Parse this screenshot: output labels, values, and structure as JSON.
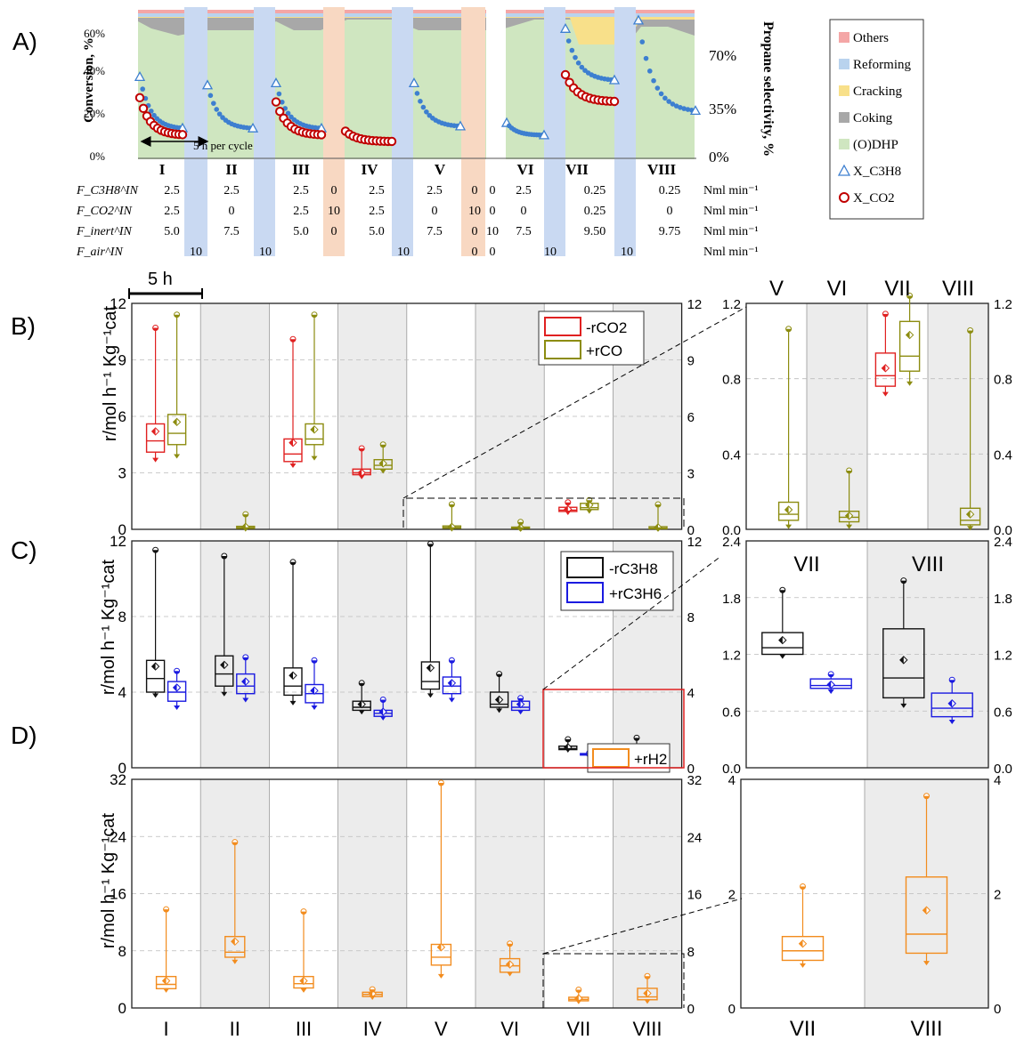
{
  "panel_labels": {
    "a": "A)",
    "b": "B)",
    "c": "C)",
    "d": "D)"
  },
  "scale_bar_label": "5 h",
  "cycle_note": "5 h per cycle",
  "colors": {
    "others": "#f4a6a6",
    "reforming": "#b9d3ee",
    "cracking": "#f8e08a",
    "coking": "#a8a8a8",
    "odhp": "#cfe6c0",
    "xc3h8": "#3d7fd0",
    "xco2": "#c00000",
    "rco2": "#e02020",
    "rco": "#8c8c10",
    "rc3h8": "#111111",
    "rc3h6": "#1a1ae0",
    "rh2": "#f28c1e",
    "air_band": "#c9d9f2",
    "co2_band": "#f8d8c2",
    "shade": "#ececec"
  },
  "chart_data": [
    {
      "type": "area",
      "panel": "A",
      "ylabel_left": "Conversion, %",
      "ylabel_right": "Propane selectivity, %",
      "yticks_left": [
        "0%",
        "20%",
        "40%",
        "60%"
      ],
      "yticks_right": [
        "0%",
        "35%",
        "70%"
      ],
      "cycles": [
        "I",
        "II",
        "III",
        "IV",
        "V",
        "VI",
        "VII",
        "VIII"
      ],
      "legend": [
        "Others",
        "Reforming",
        "Cracking",
        "Coking",
        "(O)DHP",
        "X_C3H8",
        "X_CO2"
      ],
      "feed_table": {
        "row_labels": [
          "F_C3H8^IN",
          "F_CO2^IN",
          "F_inert^IN",
          "F_air^IN"
        ],
        "units": [
          "Nml min⁻¹",
          "Nml min⁻¹",
          "Nml min⁻¹",
          "Nml min⁻¹"
        ],
        "columns": [
          {
            "C3H8": "2.5",
            "CO2": "2.5",
            "inert": "5.0",
            "air": ""
          },
          {
            "C3H8": "",
            "CO2": "",
            "inert": "",
            "air": "10"
          },
          {
            "C3H8": "2.5",
            "CO2": "0",
            "inert": "7.5",
            "air": ""
          },
          {
            "C3H8": "",
            "CO2": "",
            "inert": "",
            "air": "10"
          },
          {
            "C3H8": "2.5",
            "CO2": "2.5",
            "inert": "5.0",
            "air": ""
          },
          {
            "C3H8": "0",
            "CO2": "10",
            "inert": "0",
            "air": ""
          },
          {
            "C3H8": "2.5",
            "CO2": "2.5",
            "inert": "5.0",
            "air": ""
          },
          {
            "C3H8": "",
            "CO2": "",
            "inert": "",
            "air": "10"
          },
          {
            "C3H8": "2.5",
            "CO2": "0",
            "inert": "7.5",
            "air": ""
          },
          {
            "C3H8": "0",
            "CO2": "10",
            "inert": "0",
            "air": "0"
          },
          {
            "C3H8": "0",
            "CO2": "0",
            "inert": "10",
            "air": "0"
          },
          {
            "C3H8": "2.5",
            "CO2": "0",
            "inert": "7.5",
            "air": ""
          },
          {
            "C3H8": "",
            "CO2": "",
            "inert": "",
            "air": "10"
          },
          {
            "C3H8": "0.25",
            "CO2": "0.25",
            "inert": "9.50",
            "air": ""
          },
          {
            "C3H8": "",
            "CO2": "",
            "inert": "",
            "air": "10"
          },
          {
            "C3H8": "0.25",
            "CO2": "0",
            "inert": "9.75",
            "air": ""
          }
        ]
      },
      "conversion_c3h8": [
        {
          "cycle": "I",
          "start": 39,
          "end": 14
        },
        {
          "cycle": "II",
          "start": 35,
          "end": 14
        },
        {
          "cycle": "III",
          "start": 36,
          "end": 14
        },
        {
          "cycle": "V",
          "start": 36,
          "end": 15
        },
        {
          "cycle": "VI",
          "start": 17,
          "end": 11
        },
        {
          "cycle": "VII",
          "start": 62,
          "end": 37
        },
        {
          "cycle": "VIII",
          "start": 66,
          "end": 22
        }
      ],
      "conversion_co2": [
        {
          "cycle": "I",
          "start": 29,
          "end": 11
        },
        {
          "cycle": "III",
          "start": 27,
          "end": 11
        },
        {
          "cycle": "IV",
          "start": 13,
          "end": 8
        },
        {
          "cycle": "VII",
          "start": 40,
          "end": 27
        }
      ]
    },
    {
      "type": "box",
      "panel": "B",
      "ylabel": "r/mol h⁻¹ Kg⁻¹cat",
      "ylim": [
        0,
        12
      ],
      "yticks": [
        "0",
        "3",
        "6",
        "9",
        "12"
      ],
      "series": [
        {
          "name": "-rCO2",
          "boxes": [
            {
              "cycle": "I",
              "min": 3.7,
              "q1": 4.1,
              "median": 4.7,
              "q3": 5.6,
              "mean": 5.2,
              "max": 10.7
            },
            {
              "cycle": "III",
              "min": 3.4,
              "q1": 3.6,
              "median": 4.0,
              "q3": 4.8,
              "mean": 4.6,
              "max": 10.1
            },
            {
              "cycle": "IV",
              "min": 2.8,
              "q1": 2.9,
              "median": 3.0,
              "q3": 3.2,
              "mean": 3.0,
              "max": 4.3
            },
            {
              "cycle": "VII",
              "min": 0.9,
              "q1": 0.95,
              "median": 1.02,
              "q3": 1.17,
              "mean": 1.07,
              "max": 1.43
            }
          ]
        },
        {
          "name": "+rCO",
          "boxes": [
            {
              "cycle": "I",
              "min": 3.9,
              "q1": 4.5,
              "median": 5.1,
              "q3": 6.1,
              "mean": 5.7,
              "max": 11.4
            },
            {
              "cycle": "II",
              "min": 0.02,
              "q1": 0.05,
              "median": 0.09,
              "q3": 0.16,
              "mean": 0.13,
              "max": 0.8
            },
            {
              "cycle": "III",
              "min": 3.8,
              "q1": 4.5,
              "median": 4.8,
              "q3": 5.6,
              "mean": 5.3,
              "max": 11.4
            },
            {
              "cycle": "IV",
              "min": 3.1,
              "q1": 3.2,
              "median": 3.4,
              "q3": 3.7,
              "mean": 3.5,
              "max": 4.5
            },
            {
              "cycle": "V",
              "min": 0.02,
              "q1": 0.06,
              "median": 0.1,
              "q3": 0.18,
              "mean": 0.13,
              "max": 1.33
            },
            {
              "cycle": "VI",
              "min": 0.02,
              "q1": 0.05,
              "median": 0.08,
              "q3": 0.12,
              "mean": 0.09,
              "max": 0.39
            },
            {
              "cycle": "VII",
              "min": 0.97,
              "q1": 1.05,
              "median": 1.15,
              "q3": 1.38,
              "mean": 1.29,
              "max": 1.55
            },
            {
              "cycle": "VIII",
              "min": 0.01,
              "q1": 0.03,
              "median": 0.06,
              "q3": 0.14,
              "mean": 0.1,
              "max": 1.32
            }
          ]
        }
      ],
      "inset": {
        "cycles": [
          "V",
          "VI",
          "VII",
          "VIII"
        ],
        "ylim": [
          0,
          1.5
        ],
        "yticks": [
          "0.0",
          "0.4",
          "0.8",
          "1.2"
        ]
      }
    },
    {
      "type": "box",
      "panel": "C",
      "ylabel": "r/mol h⁻¹ Kg⁻¹cat",
      "ylim": [
        0,
        15
      ],
      "yticks": [
        "0",
        "4",
        "8",
        "12"
      ],
      "series": [
        {
          "name": "-rC3H8",
          "boxes": [
            {
              "cycle": "I",
              "min": 4.8,
              "q1": 5.0,
              "median": 5.9,
              "q3": 7.1,
              "mean": 6.7,
              "max": 14.4
            },
            {
              "cycle": "II",
              "min": 4.9,
              "q1": 5.4,
              "median": 6.2,
              "q3": 7.4,
              "mean": 6.8,
              "max": 14.0
            },
            {
              "cycle": "III",
              "min": 4.3,
              "q1": 4.8,
              "median": 5.4,
              "q3": 6.6,
              "mean": 6.1,
              "max": 13.6
            },
            {
              "cycle": "IV",
              "min": 3.7,
              "q1": 3.8,
              "median": 4.0,
              "q3": 4.4,
              "mean": 4.2,
              "max": 5.6
            },
            {
              "cycle": "V",
              "min": 4.8,
              "q1": 5.2,
              "median": 5.7,
              "q3": 7.0,
              "mean": 6.6,
              "max": 14.8
            },
            {
              "cycle": "VI",
              "min": 3.8,
              "q1": 4.0,
              "median": 4.2,
              "q3": 5.0,
              "mean": 4.5,
              "max": 6.2
            },
            {
              "cycle": "VII",
              "min": 1.18,
              "q1": 1.2,
              "median": 1.27,
              "q3": 1.43,
              "mean": 1.35,
              "max": 1.88
            },
            {
              "cycle": "VIII",
              "min": 0.66,
              "q1": 0.74,
              "median": 0.95,
              "q3": 1.47,
              "mean": 1.14,
              "max": 1.98
            }
          ]
        },
        {
          "name": "+rC3H6",
          "boxes": [
            {
              "cycle": "I",
              "min": 4.0,
              "q1": 4.4,
              "median": 5.0,
              "q3": 5.7,
              "mean": 5.3,
              "max": 6.4
            },
            {
              "cycle": "II",
              "min": 4.5,
              "q1": 4.9,
              "median": 5.4,
              "q3": 6.2,
              "mean": 5.7,
              "max": 7.3
            },
            {
              "cycle": "III",
              "min": 4.0,
              "q1": 4.3,
              "median": 4.9,
              "q3": 5.5,
              "mean": 5.1,
              "max": 7.1
            },
            {
              "cycle": "IV",
              "min": 3.3,
              "q1": 3.4,
              "median": 3.6,
              "q3": 3.8,
              "mean": 3.7,
              "max": 4.5
            },
            {
              "cycle": "V",
              "min": 4.5,
              "q1": 4.9,
              "median": 5.4,
              "q3": 6.0,
              "mean": 5.6,
              "max": 7.1
            },
            {
              "cycle": "VI",
              "min": 3.7,
              "q1": 3.8,
              "median": 4.0,
              "q3": 4.4,
              "mean": 4.2,
              "max": 4.6
            },
            {
              "cycle": "VII",
              "min": 0.81,
              "q1": 0.84,
              "median": 0.87,
              "q3": 0.94,
              "mean": 0.88,
              "max": 0.99
            },
            {
              "cycle": "VIII",
              "min": 0.49,
              "q1": 0.54,
              "median": 0.63,
              "q3": 0.79,
              "mean": 0.68,
              "max": 0.93
            }
          ]
        }
      ],
      "inset": {
        "cycles": [
          "VII",
          "VIII"
        ],
        "ylim": [
          0,
          2.4
        ],
        "yticks": [
          "0.0",
          "0.6",
          "1.2",
          "1.8",
          "2.4"
        ]
      }
    },
    {
      "type": "box",
      "panel": "D",
      "ylabel": "r/mol h⁻¹ Kg⁻¹cat",
      "ylim": [
        0,
        32
      ],
      "yticks": [
        "0",
        "8",
        "16",
        "24",
        "32"
      ],
      "xticks": [
        "I",
        "II",
        "III",
        "IV",
        "V",
        "VI",
        "VII",
        "VIII"
      ],
      "series": [
        {
          "name": "+rH2",
          "boxes": [
            {
              "cycle": "I",
              "min": 2.5,
              "q1": 2.7,
              "median": 3.3,
              "q3": 4.4,
              "mean": 3.8,
              "max": 13.8
            },
            {
              "cycle": "II",
              "min": 6.5,
              "q1": 7.1,
              "median": 7.8,
              "q3": 10.0,
              "mean": 9.3,
              "max": 23.2
            },
            {
              "cycle": "III",
              "min": 2.5,
              "q1": 2.8,
              "median": 3.4,
              "q3": 4.4,
              "mean": 3.8,
              "max": 13.5
            },
            {
              "cycle": "IV",
              "min": 1.5,
              "q1": 1.6,
              "median": 1.9,
              "q3": 2.2,
              "mean": 2.0,
              "max": 2.6
            },
            {
              "cycle": "V",
              "min": 4.5,
              "q1": 6.0,
              "median": 7.1,
              "q3": 8.9,
              "mean": 8.5,
              "max": 31.5
            },
            {
              "cycle": "VI",
              "min": 4.8,
              "q1": 5.0,
              "median": 5.9,
              "q3": 6.9,
              "mean": 6.1,
              "max": 9.0
            },
            {
              "cycle": "VII",
              "min": 0.9,
              "q1": 1.0,
              "median": 1.2,
              "q3": 1.5,
              "mean": 1.35,
              "max": 2.55
            },
            {
              "cycle": "VIII",
              "min": 0.95,
              "q1": 1.15,
              "median": 1.55,
              "q3": 2.75,
              "mean": 2.05,
              "max": 4.45
            }
          ]
        }
      ],
      "inset": {
        "cycles": [
          "VII",
          "VIII"
        ],
        "ylim": [
          0,
          4.8
        ],
        "yticks": [
          "0",
          "2",
          "4"
        ]
      }
    }
  ]
}
